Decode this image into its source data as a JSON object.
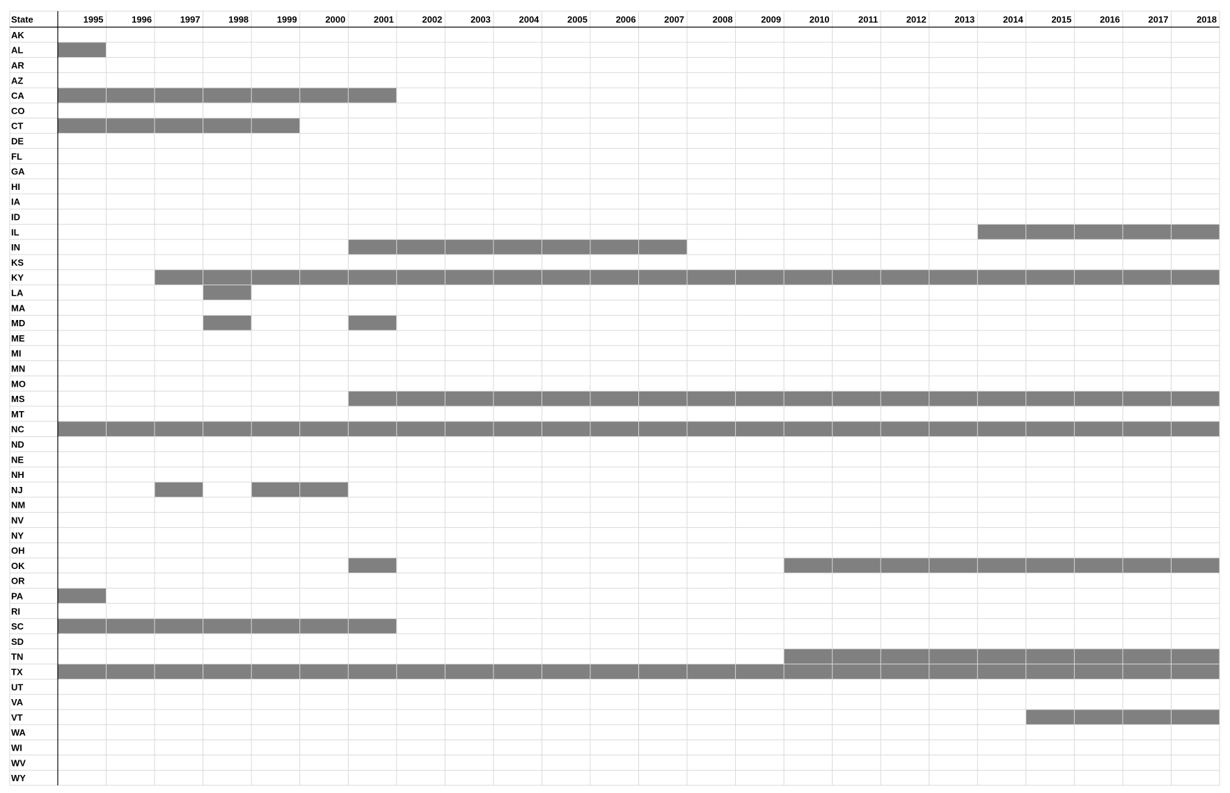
{
  "chart_data": {
    "type": "table",
    "header_label": "State",
    "years": [
      "1995",
      "1996",
      "1997",
      "1998",
      "1999",
      "2000",
      "2001",
      "2002",
      "2003",
      "2004",
      "2005",
      "2006",
      "2007",
      "2008",
      "2009",
      "2010",
      "2011",
      "2012",
      "2013",
      "2014",
      "2015",
      "2016",
      "2017",
      "2018"
    ],
    "states": [
      "AK",
      "AL",
      "AR",
      "AZ",
      "CA",
      "CO",
      "CT",
      "DE",
      "FL",
      "GA",
      "HI",
      "IA",
      "ID",
      "IL",
      "IN",
      "KS",
      "KY",
      "LA",
      "MA",
      "MD",
      "ME",
      "MI",
      "MN",
      "MO",
      "MS",
      "MT",
      "NC",
      "ND",
      "NE",
      "NH",
      "NJ",
      "NM",
      "NV",
      "NY",
      "OH",
      "OK",
      "OR",
      "PA",
      "RI",
      "SC",
      "SD",
      "TN",
      "TX",
      "UT",
      "VA",
      "VT",
      "WA",
      "WI",
      "WV",
      "WY"
    ],
    "shaded_periods": [
      {
        "state": "AL",
        "start_year": "1995",
        "end_year": "1995"
      },
      {
        "state": "CA",
        "start_year": "1995",
        "end_year": "2001"
      },
      {
        "state": "CT",
        "start_year": "1995",
        "end_year": "1999"
      },
      {
        "state": "IL",
        "start_year": "2014",
        "end_year": "2018"
      },
      {
        "state": "IN",
        "start_year": "2001",
        "end_year": "2007"
      },
      {
        "state": "KY",
        "start_year": "1997",
        "end_year": "2018"
      },
      {
        "state": "LA",
        "start_year": "1998",
        "end_year": "1998"
      },
      {
        "state": "MD",
        "start_year": "1998",
        "end_year": "1998"
      },
      {
        "state": "MD",
        "start_year": "2001",
        "end_year": "2001"
      },
      {
        "state": "MS",
        "start_year": "2001",
        "end_year": "2018"
      },
      {
        "state": "NC",
        "start_year": "1995",
        "end_year": "2018"
      },
      {
        "state": "NJ",
        "start_year": "1997",
        "end_year": "1997"
      },
      {
        "state": "NJ",
        "start_year": "1999",
        "end_year": "2000"
      },
      {
        "state": "OK",
        "start_year": "2001",
        "end_year": "2001"
      },
      {
        "state": "OK",
        "start_year": "2010",
        "end_year": "2018"
      },
      {
        "state": "PA",
        "start_year": "1995",
        "end_year": "1995"
      },
      {
        "state": "SC",
        "start_year": "1995",
        "end_year": "2001"
      },
      {
        "state": "TN",
        "start_year": "2010",
        "end_year": "2018"
      },
      {
        "state": "TX",
        "start_year": "1995",
        "end_year": "2018"
      },
      {
        "state": "VT",
        "start_year": "2015",
        "end_year": "2018"
      }
    ],
    "colors": {
      "fill": "#808080",
      "grid": "#d9d9d9",
      "axis": "#000000",
      "text": "#000000"
    }
  }
}
